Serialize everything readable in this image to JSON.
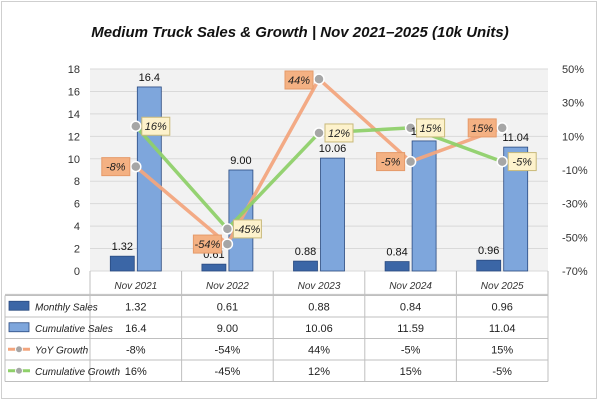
{
  "chart_data": {
    "type": "bar",
    "title": "Medium Truck Sales & Growth | Nov 2021–2025 (10k Units)",
    "categories": [
      "Nov 2021",
      "Nov 2022",
      "Nov 2023",
      "Nov 2024",
      "Nov 2025"
    ],
    "y_left": {
      "range": [
        0,
        18
      ],
      "ticks": [
        "0",
        "2",
        "4",
        "6",
        "8",
        "10",
        "12",
        "14",
        "16",
        "18"
      ]
    },
    "y_right": {
      "range": [
        -70,
        50
      ],
      "ticks": [
        "-70%",
        "-50%",
        "-30%",
        "-10%",
        "10%",
        "30%",
        "50%"
      ]
    },
    "grid": true,
    "legend": "table-bottom",
    "series": [
      {
        "name": "Monthly Sales",
        "kind": "bar",
        "axis": "left",
        "color": "#3b66a6",
        "values": [
          1.32,
          0.61,
          0.88,
          0.84,
          0.96
        ],
        "labels": [
          "1.32",
          "0.61",
          "0.88",
          "0.84",
          "0.96"
        ]
      },
      {
        "name": "Cumulative Sales",
        "kind": "bar",
        "axis": "left",
        "color": "#7ea6dc",
        "values": [
          16.4,
          9.0,
          10.06,
          11.59,
          11.04
        ],
        "labels": [
          "16.4",
          "9.00",
          "10.06",
          "11.59",
          "11.04"
        ]
      },
      {
        "name": "YoY Growth",
        "kind": "line",
        "axis": "right",
        "color": "#f2a57e",
        "values": [
          -8,
          -54,
          44,
          -5,
          15
        ],
        "labels": [
          "-8%",
          "-54%",
          "44%",
          "-5%",
          "15%"
        ]
      },
      {
        "name": "Cumulative Growth",
        "kind": "line",
        "axis": "right",
        "color": "#8fd06a",
        "values": [
          16,
          -45,
          12,
          15,
          -5
        ],
        "labels": [
          "16%",
          "-45%",
          "12%",
          "15%",
          "-5%"
        ]
      }
    ]
  }
}
